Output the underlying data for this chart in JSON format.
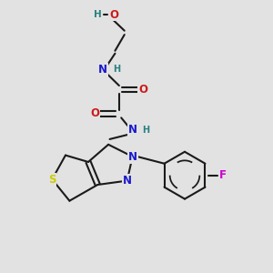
{
  "background_color": "#e2e2e2",
  "atom_colors": {
    "C": "#1a1a1a",
    "N": "#1a1acc",
    "O": "#cc1a1a",
    "S": "#cccc00",
    "F": "#cc00cc",
    "H": "#2a8080"
  },
  "bond_color": "#1a1a1a",
  "bond_width": 1.5,
  "font_size": 8.5
}
